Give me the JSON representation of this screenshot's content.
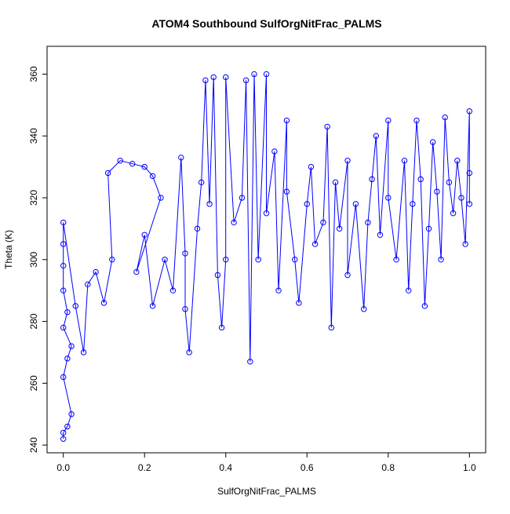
{
  "chart_data": {
    "type": "scatter",
    "title": "ATOM4 Southbound SulfOrgNitFrac_PALMS",
    "xlabel": "SulfOrgNitFrac_PALMS",
    "ylabel": "Theta (K)",
    "xlim": [
      -0.04,
      1.04
    ],
    "ylim": [
      237.5,
      369
    ],
    "xticks": [
      0.0,
      0.2,
      0.4,
      0.6,
      0.8,
      1.0
    ],
    "xtick_labels": [
      "0.0",
      "0.2",
      "0.4",
      "0.6",
      "0.8",
      "1.0"
    ],
    "yticks": [
      240,
      260,
      280,
      300,
      320,
      340,
      360
    ],
    "ytick_labels": [
      "240",
      "260",
      "280",
      "300",
      "320",
      "340",
      "360"
    ],
    "grid": false,
    "marker": "open-circle",
    "connect_points": true,
    "series_color": "#0000ff",
    "series": [
      {
        "points": [
          [
            0.0,
            242
          ],
          [
            0.0,
            244
          ],
          [
            0.01,
            246
          ],
          [
            0.02,
            250
          ],
          [
            0.0,
            262
          ],
          [
            0.01,
            268
          ],
          [
            0.02,
            272
          ],
          [
            0.0,
            278
          ],
          [
            0.01,
            283
          ],
          [
            0.0,
            290
          ],
          [
            0.0,
            298
          ],
          [
            0.0,
            305
          ],
          [
            0.0,
            312
          ],
          [
            0.03,
            285
          ],
          [
            0.05,
            270
          ],
          [
            0.06,
            292
          ],
          [
            0.08,
            296
          ],
          [
            0.1,
            286
          ],
          [
            0.12,
            300
          ],
          [
            0.11,
            328
          ],
          [
            0.14,
            332
          ],
          [
            0.17,
            331
          ],
          [
            0.2,
            330
          ],
          [
            0.22,
            327
          ],
          [
            0.24,
            320
          ],
          [
            0.18,
            296
          ],
          [
            0.2,
            308
          ],
          [
            0.22,
            285
          ],
          [
            0.25,
            300
          ],
          [
            0.27,
            290
          ],
          [
            0.29,
            333
          ],
          [
            0.3,
            302
          ],
          [
            0.3,
            284
          ],
          [
            0.31,
            270
          ],
          [
            0.33,
            310
          ],
          [
            0.34,
            325
          ],
          [
            0.35,
            358
          ],
          [
            0.36,
            318
          ],
          [
            0.37,
            359
          ],
          [
            0.38,
            295
          ],
          [
            0.39,
            278
          ],
          [
            0.4,
            300
          ],
          [
            0.4,
            359
          ],
          [
            0.42,
            312
          ],
          [
            0.44,
            320
          ],
          [
            0.45,
            358
          ],
          [
            0.46,
            267
          ],
          [
            0.47,
            360
          ],
          [
            0.48,
            300
          ],
          [
            0.5,
            360
          ],
          [
            0.5,
            315
          ],
          [
            0.52,
            335
          ],
          [
            0.53,
            290
          ],
          [
            0.55,
            345
          ],
          [
            0.55,
            322
          ],
          [
            0.57,
            300
          ],
          [
            0.58,
            286
          ],
          [
            0.6,
            318
          ],
          [
            0.61,
            330
          ],
          [
            0.62,
            305
          ],
          [
            0.64,
            312
          ],
          [
            0.65,
            343
          ],
          [
            0.66,
            278
          ],
          [
            0.67,
            325
          ],
          [
            0.68,
            310
          ],
          [
            0.7,
            332
          ],
          [
            0.7,
            295
          ],
          [
            0.72,
            318
          ],
          [
            0.74,
            284
          ],
          [
            0.75,
            312
          ],
          [
            0.76,
            326
          ],
          [
            0.77,
            340
          ],
          [
            0.78,
            308
          ],
          [
            0.8,
            345
          ],
          [
            0.8,
            320
          ],
          [
            0.82,
            300
          ],
          [
            0.84,
            332
          ],
          [
            0.85,
            290
          ],
          [
            0.86,
            318
          ],
          [
            0.87,
            345
          ],
          [
            0.88,
            326
          ],
          [
            0.89,
            285
          ],
          [
            0.9,
            310
          ],
          [
            0.91,
            338
          ],
          [
            0.92,
            322
          ],
          [
            0.93,
            300
          ],
          [
            0.94,
            346
          ],
          [
            0.95,
            325
          ],
          [
            0.96,
            315
          ],
          [
            0.97,
            332
          ],
          [
            0.98,
            320
          ],
          [
            0.99,
            305
          ],
          [
            1.0,
            348
          ],
          [
            1.0,
            328
          ],
          [
            1.0,
            318
          ]
        ]
      }
    ]
  }
}
